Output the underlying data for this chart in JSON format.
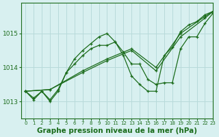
{
  "background_color": "#d8f0f0",
  "grid_color": "#b8dada",
  "line_color": "#1a6b1a",
  "xlabel": "Graphe pression niveau de la mer (hPa)",
  "xlabel_fontsize": 7.5,
  "ylim": [
    1012.5,
    1015.9
  ],
  "xlim": [
    -0.5,
    23
  ],
  "yticks": [
    1013,
    1014,
    1015
  ],
  "xticks": [
    0,
    1,
    2,
    3,
    4,
    5,
    6,
    7,
    8,
    9,
    10,
    11,
    12,
    13,
    14,
    15,
    16,
    17,
    18,
    19,
    20,
    21,
    22,
    23
  ],
  "series": [
    {
      "x": [
        0,
        1,
        2,
        3,
        4,
        5,
        6,
        7,
        8,
        9,
        10,
        11,
        12,
        13,
        14,
        15,
        16,
        17,
        18,
        19,
        20,
        21,
        22,
        23
      ],
      "y": [
        1013.3,
        1013.05,
        1013.3,
        1013.0,
        1013.3,
        1013.85,
        1014.25,
        1014.5,
        1014.7,
        1014.9,
        1015.0,
        1014.75,
        1014.45,
        1014.1,
        1014.1,
        1013.65,
        1013.5,
        1013.55,
        1013.55,
        1014.55,
        1014.9,
        1014.9,
        1015.3,
        1015.6
      ]
    },
    {
      "x": [
        0,
        3,
        7,
        10,
        13,
        16,
        19,
        22,
        23
      ],
      "y": [
        1013.3,
        1013.35,
        1013.85,
        1014.2,
        1014.5,
        1013.9,
        1014.9,
        1015.45,
        1015.65
      ]
    },
    {
      "x": [
        0,
        3,
        7,
        10,
        13,
        16,
        19,
        22,
        23
      ],
      "y": [
        1013.3,
        1013.35,
        1013.9,
        1014.25,
        1014.55,
        1014.0,
        1015.0,
        1015.5,
        1015.65
      ]
    },
    {
      "x": [
        0,
        1,
        2,
        3,
        4,
        5,
        6,
        7,
        8,
        9,
        10,
        11,
        12,
        13,
        14,
        15,
        16,
        17,
        18,
        19,
        20,
        21,
        22,
        23
      ],
      "y": [
        1013.3,
        1013.1,
        1013.3,
        1013.05,
        1013.35,
        1013.85,
        1014.1,
        1014.35,
        1014.55,
        1014.65,
        1014.65,
        1014.75,
        1014.35,
        1013.75,
        1013.5,
        1013.3,
        1013.3,
        1014.35,
        1014.6,
        1015.05,
        1015.25,
        1015.35,
        1015.55,
        1015.65
      ]
    }
  ]
}
